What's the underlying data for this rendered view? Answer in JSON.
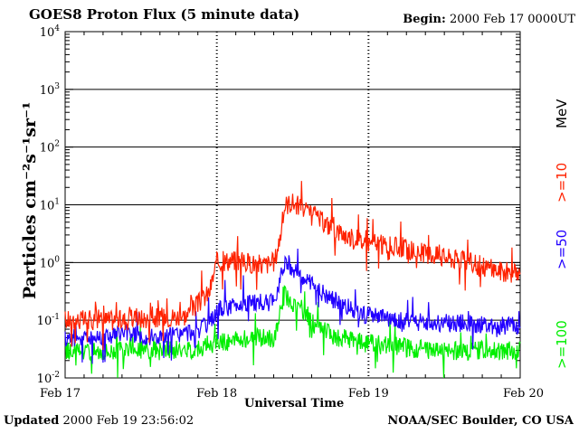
{
  "header": {
    "title": "GOES8 Proton Flux (5 minute data)",
    "begin_label": "Begin:",
    "begin_value": "2000 Feb 17 0000UT"
  },
  "footer": {
    "updated_label": "Updated",
    "updated_value": "2000 Feb 19 23:56:02",
    "credit": "NOAA/SEC Boulder, CO USA"
  },
  "right_legend": {
    "unit": "MeV",
    "items": [
      {
        "label": ">=10",
        "color": "#ff2200"
      },
      {
        "label": ">=50",
        "color": "#2200ff"
      },
      {
        "label": ">=100",
        "color": "#00ee00"
      }
    ]
  },
  "chart_data": {
    "type": "line",
    "title": "GOES8 Proton Flux (5 minute data)",
    "xlabel": "Universal Time",
    "ylabel": "Particles cm⁻²s⁻¹sr⁻¹",
    "yscale": "log",
    "ylim": [
      0.01,
      10000
    ],
    "y_ticks": [
      {
        "v": 0.01,
        "base": "10",
        "exp": "-2"
      },
      {
        "v": 0.1,
        "base": "10",
        "exp": "-1"
      },
      {
        "v": 1,
        "base": "10",
        "exp": "0"
      },
      {
        "v": 10,
        "base": "10",
        "exp": "1"
      },
      {
        "v": 100,
        "base": "10",
        "exp": "2"
      },
      {
        "v": 1000,
        "base": "10",
        "exp": "3"
      },
      {
        "v": 10000,
        "base": "10",
        "exp": "4"
      }
    ],
    "x_ticks": [
      "Feb 17",
      "Feb 18",
      "Feb 19",
      "Feb 20"
    ],
    "x_unit": "days since 2000 Feb 17 00:00 UT",
    "grid": true,
    "series": [
      {
        "name": ">=10 MeV",
        "color": "#ff2200",
        "x": [
          0,
          0.2,
          0.4,
          0.6,
          0.8,
          0.95,
          1.0,
          1.1,
          1.2,
          1.3,
          1.38,
          1.42,
          1.45,
          1.5,
          1.55,
          1.6,
          1.7,
          1.8,
          1.9,
          2.0,
          2.2,
          2.4,
          2.6,
          2.8,
          3.0
        ],
        "y": [
          0.1,
          0.1,
          0.1,
          0.11,
          0.12,
          0.3,
          1.0,
          1.1,
          1.0,
          0.9,
          1.0,
          3.0,
          10.0,
          11.0,
          9.0,
          7.0,
          5.0,
          3.5,
          2.5,
          2.2,
          1.8,
          1.4,
          1.1,
          0.8,
          0.6
        ]
      },
      {
        "name": ">=50 MeV",
        "color": "#2200ff",
        "x": [
          0,
          0.2,
          0.4,
          0.6,
          0.8,
          0.95,
          1.0,
          1.2,
          1.38,
          1.42,
          1.45,
          1.5,
          1.6,
          1.7,
          1.8,
          1.9,
          2.0,
          2.2,
          2.4,
          2.6,
          2.8,
          3.0
        ],
        "y": [
          0.05,
          0.05,
          0.06,
          0.05,
          0.06,
          0.08,
          0.15,
          0.2,
          0.2,
          0.6,
          1.1,
          0.8,
          0.45,
          0.3,
          0.2,
          0.15,
          0.12,
          0.1,
          0.09,
          0.09,
          0.08,
          0.08
        ]
      },
      {
        "name": ">=100 MeV",
        "color": "#00ee00",
        "x": [
          0,
          0.2,
          0.4,
          0.6,
          0.8,
          1.0,
          1.2,
          1.38,
          1.42,
          1.45,
          1.5,
          1.6,
          1.7,
          1.8,
          2.0,
          2.2,
          2.4,
          2.6,
          2.8,
          3.0
        ],
        "y": [
          0.03,
          0.03,
          0.03,
          0.03,
          0.03,
          0.04,
          0.05,
          0.05,
          0.15,
          0.3,
          0.18,
          0.1,
          0.07,
          0.05,
          0.04,
          0.035,
          0.03,
          0.03,
          0.03,
          0.03
        ]
      }
    ]
  }
}
